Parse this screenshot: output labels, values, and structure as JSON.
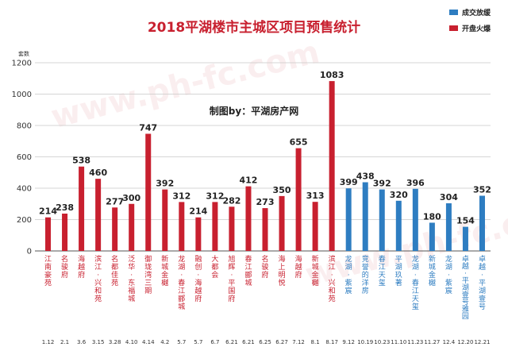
{
  "chart_data": {
    "type": "bar",
    "title": "2018平湖楼市主城区项目预售统计",
    "annotation": "制图by：平湖房产网",
    "watermark": "www.ph-fc.com",
    "ylabel": "套数",
    "ylim": [
      0,
      1200
    ],
    "yticks": [
      0,
      200,
      400,
      600,
      800,
      1000,
      1200
    ],
    "grid": true,
    "legend_position": "top-right",
    "legend": [
      {
        "name": "成交放缓",
        "color": "#2e7dc1"
      },
      {
        "name": "开盘火爆",
        "color": "#c8202f"
      }
    ],
    "categories": [
      "江南豪苑",
      "名骏府",
      "海越府",
      "滨江·兴和苑",
      "名都佳苑",
      "泛华·东福城",
      "御珑湾三期",
      "新城金樾",
      "龙湖·春江郦城",
      "融创·海越府",
      "大都会",
      "旭辉·平国府",
      "春江郦城",
      "名骏府",
      "海上明悦",
      "海越府",
      "新城金樾",
      "滨江·兴和苑",
      "龙湖·紫宸",
      "竞誉的洋房",
      "春江天玺",
      "平湖玖著",
      "龙湖·春江天玺",
      "新城金樾",
      "龙湖·紫宸",
      "卓越·平湖壹号雅园",
      "卓越·平湖壹号"
    ],
    "dates": [
      "1.12",
      "2.1",
      "3.6",
      "3.15",
      "3.28",
      "4.10",
      "4.14",
      "4.2",
      "5.7",
      "5.7",
      "6.7",
      "6.21",
      "6.21",
      "6.25",
      "6.27",
      "7.12",
      "8.1",
      "8.17",
      "9.12",
      "10.19",
      "10.23",
      "11.10",
      "11.23",
      "11.27",
      "12.4",
      "12.20",
      "12.21"
    ],
    "values": [
      214,
      238,
      538,
      460,
      277,
      300,
      747,
      392,
      312,
      214,
      312,
      282,
      412,
      273,
      350,
      655,
      313,
      1083,
      399,
      438,
      392,
      320,
      396,
      180,
      304,
      154,
      352
    ],
    "groups": [
      "开盘火爆",
      "开盘火爆",
      "开盘火爆",
      "开盘火爆",
      "开盘火爆",
      "开盘火爆",
      "开盘火爆",
      "开盘火爆",
      "开盘火爆",
      "开盘火爆",
      "开盘火爆",
      "开盘火爆",
      "开盘火爆",
      "开盘火爆",
      "开盘火爆",
      "开盘火爆",
      "开盘火爆",
      "开盘火爆",
      "成交放缓",
      "成交放缓",
      "成交放缓",
      "成交放缓",
      "成交放缓",
      "成交放缓",
      "成交放缓",
      "成交放缓",
      "成交放缓"
    ]
  }
}
